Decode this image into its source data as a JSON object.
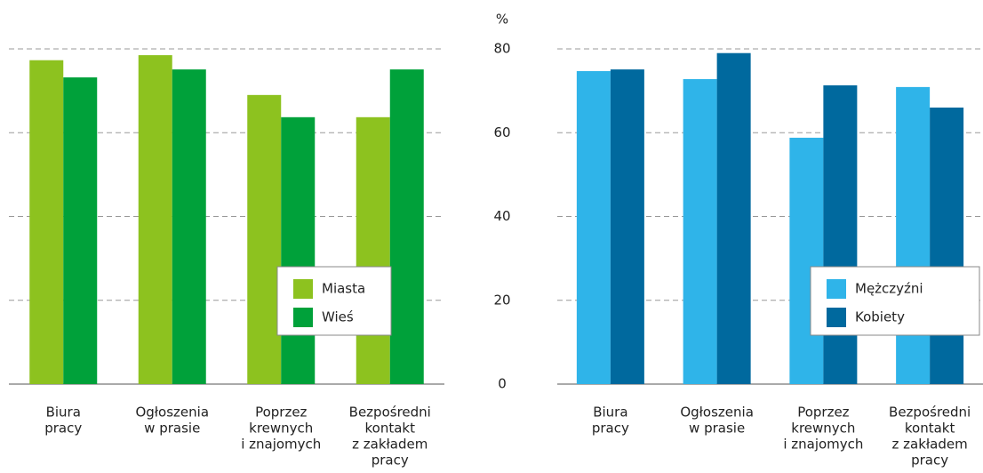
{
  "chart_data": [
    {
      "type": "bar",
      "categories": [
        [
          "Biura",
          "pracy"
        ],
        [
          "Ogłoszenia",
          "w prasie"
        ],
        [
          "Poprzez",
          "krewnych",
          "i znajomych"
        ],
        [
          "Bezpośredni",
          "kontakt",
          "z zakładem",
          "pracy"
        ]
      ],
      "series": [
        {
          "name": "Miasta",
          "color": "#8dc21f",
          "values": [
            77.3,
            78.5,
            69,
            63.7
          ]
        },
        {
          "name": "Wieś",
          "color": "#00a13a",
          "values": [
            73.2,
            75.1,
            63.7,
            75.1
          ]
        }
      ],
      "ylim": [
        0,
        80
      ],
      "yticks": [
        0,
        20,
        40,
        60,
        80
      ],
      "grid": true,
      "legend": "lower right"
    },
    {
      "type": "bar",
      "ylabel": "%",
      "categories": [
        [
          "Biura",
          "pracy"
        ],
        [
          "Ogłoszenia",
          "w prasie"
        ],
        [
          "Poprzez",
          "krewnych",
          "i znajomych"
        ],
        [
          "Bezpośredni",
          "kontakt",
          "z zakładem",
          "pracy"
        ]
      ],
      "series": [
        {
          "name": "Mężczyźni",
          "color": "#2fb4e9",
          "values": [
            74.7,
            72.8,
            58.8,
            70.9
          ]
        },
        {
          "name": "Kobiety",
          "color": "#00699e",
          "values": [
            75.1,
            79,
            71.3,
            66
          ]
        }
      ],
      "ylim": [
        0,
        80
      ],
      "yticks": [
        0,
        20,
        40,
        60,
        80
      ],
      "grid": true,
      "legend": "lower right"
    }
  ]
}
